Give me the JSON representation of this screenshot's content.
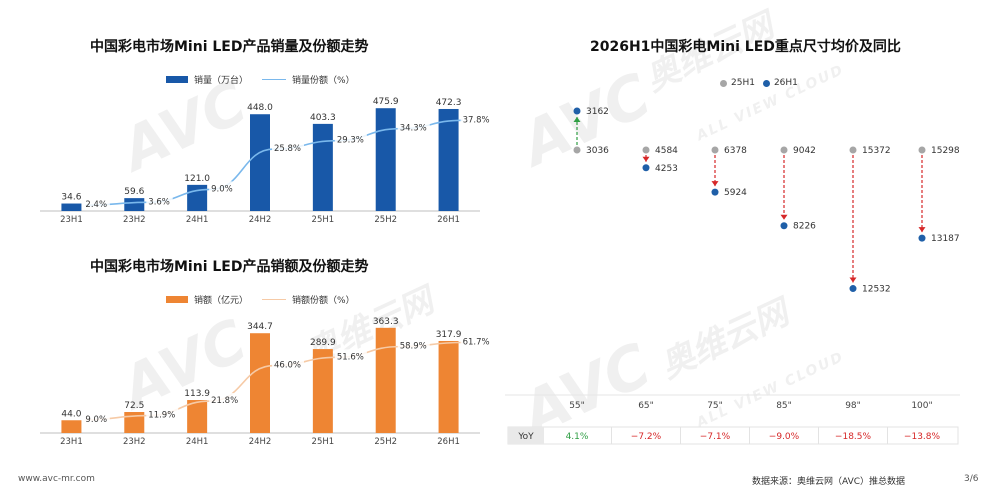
{
  "charts": {
    "volume": {
      "title": "中国彩电市场Mini LED产品销量及份额走势",
      "legend_bar": "销量（万台）",
      "legend_line": "销量份额（%）"
    },
    "revenue": {
      "title": "中国彩电市场Mini LED产品销额及份额走势",
      "legend_bar": "销额（亿元）",
      "legend_line": "销额份额（%）"
    },
    "price": {
      "title": "2026H1中国彩电Mini LED重点尺寸均价及同比",
      "legend_a": "25H1",
      "legend_b": "26H1",
      "yoy_label": "YoY"
    }
  },
  "footer": {
    "website": "www.avc-mr.com",
    "source": "数据来源：奥维云网（AVC）推总数据",
    "page": "3/6"
  },
  "watermark": {
    "logo": "AVC",
    "cn": "奥维云网",
    "en": "ALL VIEW CLOUD"
  },
  "chart_data": [
    {
      "type": "bar",
      "categories": [
        "23H1",
        "23H2",
        "24H1",
        "24H2",
        "25H1",
        "25H2",
        "26H1"
      ],
      "series": [
        {
          "name": "销量（万台）",
          "kind": "bar",
          "values": [
            34.6,
            59.6,
            121.0,
            448.0,
            403.3,
            475.9,
            472.3
          ],
          "labels": [
            "34.6",
            "59.6",
            "121.0",
            "448.0",
            "403.3",
            "475.9",
            "472.3"
          ],
          "color": "#1858a8"
        },
        {
          "name": "销量份额（%）",
          "kind": "line",
          "values": [
            2.4,
            3.6,
            9.0,
            25.8,
            29.3,
            34.3,
            37.8
          ],
          "labels": [
            "2.4%",
            "3.6%",
            "9.0%",
            "25.8%",
            "29.3%",
            "34.3%",
            "37.8%"
          ],
          "color": "#7ab8ec"
        }
      ]
    },
    {
      "type": "bar",
      "categories": [
        "23H1",
        "23H2",
        "24H1",
        "24H2",
        "25H1",
        "25H2",
        "26H1"
      ],
      "series": [
        {
          "name": "销额（亿元）",
          "kind": "bar",
          "values": [
            44.0,
            72.5,
            113.9,
            344.7,
            289.9,
            363.3,
            317.9
          ],
          "labels": [
            "44.0",
            "72.5",
            "113.9",
            "344.7",
            "289.9",
            "363.3",
            "317.9"
          ],
          "color": "#ee8533"
        },
        {
          "name": "销额份额（%）",
          "kind": "line",
          "values": [
            9.0,
            11.9,
            21.8,
            46.0,
            51.6,
            58.9,
            61.7
          ],
          "labels": [
            "9.0%",
            "11.9%",
            "21.8%",
            "46.0%",
            "51.6%",
            "58.9%",
            "61.7%"
          ],
          "color": "#f6caa6"
        }
      ]
    },
    {
      "type": "scatter",
      "categories": [
        "55\"",
        "65\"",
        "75\"",
        "85\"",
        "98\"",
        "100\""
      ],
      "series": [
        {
          "name": "25H1",
          "values": [
            3036,
            4584,
            6378,
            9042,
            15372,
            15298
          ],
          "labels": [
            "3036",
            "4584",
            "6378",
            "9042",
            "15372",
            "15298"
          ],
          "color": "#a6a6a6"
        },
        {
          "name": "26H1",
          "values": [
            3162,
            4253,
            5924,
            8226,
            12532,
            13187
          ],
          "labels": [
            "3162",
            "4253",
            "5924",
            "8226",
            "12532",
            "13187"
          ],
          "color": "#1f5fa8"
        }
      ],
      "yoy": [
        "4.1%",
        "−7.2%",
        "−7.1%",
        "−9.0%",
        "−18.5%",
        "−13.8%"
      ],
      "yoy_colors": [
        "#2f9e44",
        "#d62728",
        "#d62728",
        "#d62728",
        "#d62728",
        "#d62728"
      ]
    }
  ]
}
